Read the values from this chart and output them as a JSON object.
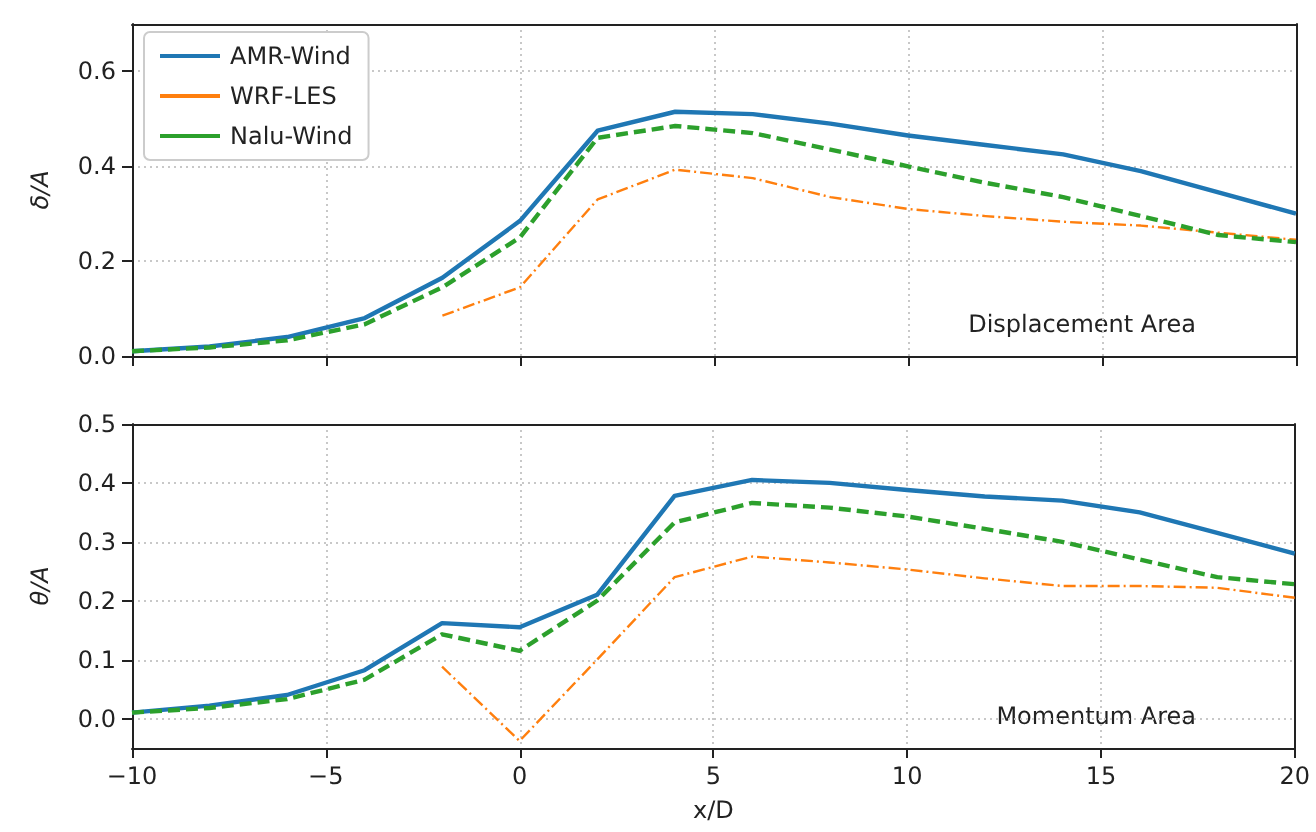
{
  "chart_data": [
    {
      "type": "line",
      "ylabel": "δ/A",
      "annotations": [
        "Displacement Area"
      ],
      "xlim": [
        -10,
        20
      ],
      "xticks": [
        -10,
        -5,
        0,
        5,
        10,
        15,
        20
      ],
      "ylim": [
        0,
        0.7
      ],
      "yticks": [
        {
          "value": 0,
          "label": "0.0"
        },
        0.2,
        0.4,
        0.6
      ],
      "grid": true,
      "legend": "top left",
      "tick_labels": "y",
      "marker": "none",
      "series": [
        {
          "name": "AMR-Wind",
          "color": "#1f77b4",
          "line_style": "solid",
          "x": [
            -10,
            -8,
            -6,
            -4,
            -2,
            0,
            2,
            4,
            6,
            8,
            10,
            12,
            14,
            16,
            18,
            20
          ],
          "values": [
            0.01,
            0.02,
            0.04,
            0.08,
            0.165,
            0.285,
            0.475,
            0.515,
            0.51,
            0.49,
            0.465,
            0.445,
            0.425,
            0.39,
            0.345,
            0.3
          ]
        },
        {
          "name": "WRF-LES",
          "color": "#ff7f0e",
          "line_style": "dashdot",
          "x": [
            -2,
            0,
            2,
            4,
            6,
            8,
            10,
            12,
            14,
            16,
            18,
            20
          ],
          "values": [
            0.085,
            0.145,
            0.33,
            0.393,
            0.375,
            0.335,
            0.31,
            0.295,
            0.283,
            0.275,
            0.26,
            0.245
          ]
        },
        {
          "name": "Nalu-Wind",
          "color": "#2ca02c",
          "line_style": "dashed",
          "x": [
            -10,
            -8,
            -6,
            -4,
            -2,
            0,
            2,
            4,
            6,
            8,
            10,
            12,
            14,
            16,
            18,
            20
          ],
          "values": [
            0.01,
            0.018,
            0.033,
            0.067,
            0.145,
            0.25,
            0.46,
            0.485,
            0.47,
            0.435,
            0.4,
            0.365,
            0.335,
            0.295,
            0.255,
            0.24
          ]
        }
      ]
    },
    {
      "type": "line",
      "xlabel": "x/D",
      "ylabel": "θ/A",
      "annotations": [
        "Momentum Area"
      ],
      "xlim": [
        -10,
        20
      ],
      "xticks": [
        -10,
        -5,
        0,
        5,
        10,
        15,
        20
      ],
      "ylim": [
        -0.05,
        0.5
      ],
      "yticks": [
        {
          "value": 0,
          "label": "0.0"
        },
        0.1,
        0.2,
        0.3,
        0.4,
        0.5
      ],
      "grid": true,
      "marker": "none",
      "series": [
        {
          "color": "#1f77b4",
          "line_style": "solid",
          "x": [
            -10,
            -8,
            -6,
            -4,
            -2,
            0,
            2,
            4,
            6,
            8,
            10,
            12,
            14,
            16,
            18,
            20
          ],
          "values": [
            0.01,
            0.022,
            0.04,
            0.082,
            0.162,
            0.155,
            0.21,
            0.378,
            0.405,
            0.4,
            0.388,
            0.377,
            0.37,
            0.35,
            0.315,
            0.28
          ]
        },
        {
          "color": "#ff7f0e",
          "line_style": "dashdot",
          "x": [
            -2,
            0,
            2,
            4,
            6,
            8,
            10,
            12,
            14,
            16,
            18,
            20
          ],
          "values": [
            0.088,
            -0.038,
            0.1,
            0.24,
            0.275,
            0.265,
            0.253,
            0.238,
            0.225,
            0.225,
            0.222,
            0.205
          ]
        },
        {
          "color": "#2ca02c",
          "line_style": "dashed",
          "x": [
            -10,
            -8,
            -6,
            -4,
            -2,
            0,
            2,
            4,
            6,
            8,
            10,
            12,
            14,
            16,
            18,
            20
          ],
          "values": [
            0.01,
            0.018,
            0.033,
            0.066,
            0.143,
            0.115,
            0.2,
            0.333,
            0.366,
            0.358,
            0.343,
            0.322,
            0.3,
            0.27,
            0.24,
            0.228
          ]
        }
      ]
    }
  ]
}
